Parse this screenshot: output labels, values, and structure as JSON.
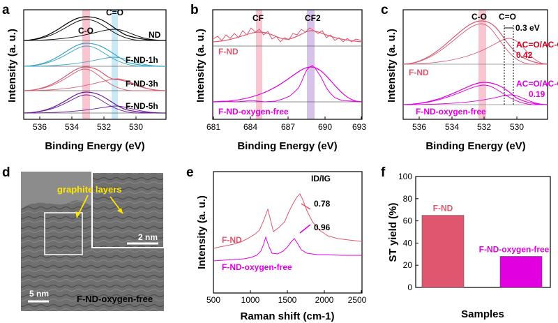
{
  "figure": {
    "panels": [
      {
        "letter": "a",
        "xlabel": "Binding Energy (eV)",
        "ylabel": "Intensity (a. u.)",
        "xticks": [
          "536",
          "534",
          "532",
          "530"
        ],
        "bands": [
          "C-O",
          "C=O"
        ],
        "curves": [
          "ND",
          "F-ND-1h",
          "F-ND-3h",
          "F-ND-5h"
        ]
      },
      {
        "letter": "b",
        "xlabel": "Binding Energy (eV)",
        "ylabel": "Intensity (a. u.)",
        "xticks": [
          "681",
          "684",
          "687",
          "690",
          "693"
        ],
        "bands": [
          "CF",
          "CF2"
        ],
        "curves": [
          "F-ND",
          "F-ND-oxygen-free"
        ]
      },
      {
        "letter": "c",
        "xlabel": "Binding Energy (eV)",
        "ylabel": "Intensity (a. u.)",
        "xticks": [
          "536",
          "534",
          "532",
          "530"
        ],
        "bands": [
          "C-O",
          "C=O"
        ],
        "shift_label": "0.3 eV",
        "ratio_label": "AC=O/AC-O",
        "ratios": [
          "0.42",
          "0.19"
        ],
        "curves": [
          "F-ND",
          "F-ND-oxygen-free"
        ]
      },
      {
        "letter": "d",
        "scalebar_main": "5 nm",
        "scalebar_inset": "2 nm",
        "annotation": "graphite layers",
        "sample": "F-ND-oxygen-free"
      },
      {
        "letter": "e",
        "xlabel": "Raman shift (cm-1)",
        "ylabel": "Intensity (a. u.)",
        "xticks": [
          "500",
          "1000",
          "1500",
          "2000",
          "2500"
        ],
        "ratio_label": "ID/IG",
        "ratios": [
          "0.78",
          "0.96"
        ],
        "curves": [
          "F-ND",
          "F-ND-oxygen-free"
        ]
      },
      {
        "letter": "f",
        "xlabel": "Samples",
        "ylabel": "ST yield (%)"
      }
    ],
    "colors": {
      "nd": "#000000",
      "h1": "#3aa6c4",
      "h3": "#d65a72",
      "h5": "#6a1b9a",
      "fnd": "#e0566e",
      "ofree": "#e000e0",
      "pinkband": "#f6b7c6",
      "blueband": "#bde3f2",
      "purpleband": "#cdb3e3",
      "red": "#d6001c"
    }
  },
  "chart_data": [
    {
      "type": "line",
      "panel": "a",
      "xlabel": "Binding Energy (eV)",
      "ylabel": "Intensity (a. u.)",
      "xlim": [
        537.5,
        528.6
      ],
      "x_reversed": true,
      "series": [
        {
          "name": "ND",
          "peak_eV": 533.2
        },
        {
          "name": "F-ND-1h",
          "peak_eV": 533.1
        },
        {
          "name": "F-ND-3h",
          "peak_eV": 533.1
        },
        {
          "name": "F-ND-5h",
          "peak_eV": 533.2
        }
      ],
      "bands": [
        {
          "label": "C-O",
          "center_eV": 533.2
        },
        {
          "label": "C=O",
          "center_eV": 531.5
        }
      ]
    },
    {
      "type": "line",
      "panel": "b",
      "xlabel": "Binding Energy (eV)",
      "ylabel": "Intensity (a. u.)",
      "xlim": [
        681,
        693
      ],
      "series": [
        {
          "name": "F-ND",
          "peaks_eV": [
            684.6,
            688.3
          ]
        },
        {
          "name": "F-ND-oxygen-free",
          "peaks_eV": [
            688.5
          ]
        }
      ],
      "bands": [
        {
          "label": "CF",
          "center_eV": 684.8
        },
        {
          "label": "CF2",
          "center_eV": 688.8
        }
      ]
    },
    {
      "type": "line",
      "panel": "c",
      "xlabel": "Binding Energy (eV)",
      "ylabel": "Intensity (a. u.)",
      "xlim": [
        537.5,
        528.6
      ],
      "x_reversed": true,
      "series": [
        {
          "name": "F-ND",
          "AC=O/AC-O": 0.42
        },
        {
          "name": "F-ND-oxygen-free",
          "AC=O/AC-O": 0.19
        }
      ],
      "bands": [
        {
          "label": "C-O",
          "center_eV": 533.3
        },
        {
          "label": "C=O",
          "center_eV": 531.8
        }
      ],
      "shift_eV": 0.3
    },
    {
      "type": "line",
      "panel": "e",
      "xlabel": "Raman shift (cm-1)",
      "ylabel": "Intensity (a. u.)",
      "xlim": [
        500,
        2500
      ],
      "series": [
        {
          "name": "F-ND",
          "D_band": 1330,
          "G_band": 1620,
          "ID/IG": 0.78
        },
        {
          "name": "F-ND-oxygen-free",
          "D_band": 1320,
          "G_band": 1600,
          "ID/IG": 0.96
        }
      ]
    },
    {
      "type": "bar",
      "panel": "f",
      "xlabel": "Samples",
      "ylabel": "ST yield (%)",
      "categories": [
        "F-ND",
        "F-ND-oxygen-free"
      ],
      "values": [
        65,
        28
      ],
      "ylim": [
        0,
        100
      ],
      "yticks": [
        0,
        20,
        40,
        60,
        80,
        100
      ]
    }
  ]
}
